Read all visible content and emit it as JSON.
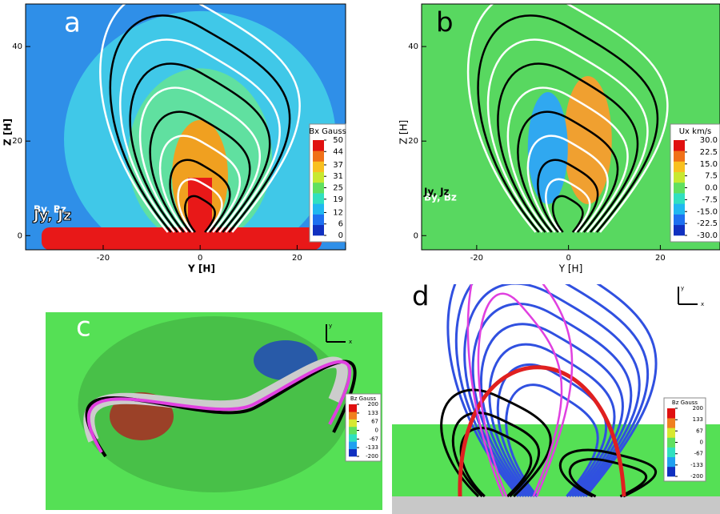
{
  "chart_data": [
    {
      "type": "field",
      "label": "a",
      "xlabel": "Y [H]",
      "ylabel": "Z [H]",
      "xlim": [
        -36,
        30
      ],
      "ylim": [
        -3,
        49
      ],
      "xticks": [
        -20,
        0,
        20
      ],
      "yticks": [
        0,
        20,
        40
      ],
      "annotations": [
        "By, Bz",
        "Jy, Jz"
      ],
      "background": "#2f8fe8",
      "colorbar": {
        "title": "Bx Gauss",
        "clim": [
          0,
          50
        ],
        "ticks": [
          50,
          44,
          37,
          31,
          25,
          19,
          12,
          6,
          0
        ],
        "colors": [
          "#1030c0",
          "#1e70f0",
          "#20b8f0",
          "#30e0c0",
          "#60e060",
          "#c8e830",
          "#f8c020",
          "#f07018",
          "#e01010"
        ]
      }
    },
    {
      "type": "field",
      "label": "b",
      "xlabel": "Y [H]",
      "ylabel": "Z [H]",
      "xlim": [
        -32,
        33
      ],
      "ylim": [
        -3,
        49
      ],
      "xticks": [
        -20,
        0,
        20
      ],
      "yticks": [
        0,
        20,
        40
      ],
      "annotations": [
        "By, Bz",
        "Jy, Jz"
      ],
      "background": "#58d860",
      "colorbar": {
        "title": "Ux km/s",
        "clim": [
          -30,
          30
        ],
        "ticks": [
          {
            "value": 30,
            "label": "30.0"
          },
          22.5,
          {
            "value": 15,
            "label": "15.0"
          },
          7.5,
          {
            "value": 0,
            "label": "0.0"
          },
          -7.5,
          {
            "value": -15,
            "label": "-15.0"
          },
          -22.5,
          {
            "value": -30,
            "label": "-30.0"
          }
        ],
        "colors": [
          "#1030c0",
          "#1e70f0",
          "#20b8f0",
          "#30e0c0",
          "#60e060",
          "#c8e830",
          "#f8c020",
          "#f07018",
          "#e01010"
        ]
      }
    },
    {
      "type": "field",
      "label": "c",
      "annotations": [
        "y",
        "x"
      ],
      "background": "#55e055",
      "colorbar": {
        "title": "Bz Gauss",
        "clim": [
          -200,
          200
        ],
        "ticks": [
          200,
          133,
          67,
          0,
          -67,
          -133,
          -200
        ],
        "colors": [
          "#1030c0",
          "#20a0f0",
          "#30e0c0",
          "#60e060",
          "#d8e830",
          "#f08020",
          "#e01010"
        ]
      }
    },
    {
      "type": "field",
      "label": "d",
      "annotations": [
        "y",
        "x"
      ],
      "background": "#55e055",
      "colorbar": {
        "title": "Bz Gauss",
        "clim": [
          -200,
          200
        ],
        "ticks": [
          200,
          133,
          67,
          0,
          -67,
          -133,
          -200
        ],
        "colors": [
          "#1030c0",
          "#20a0f0",
          "#30e0c0",
          "#60e060",
          "#d8e830",
          "#f08020",
          "#e01010"
        ]
      }
    }
  ]
}
